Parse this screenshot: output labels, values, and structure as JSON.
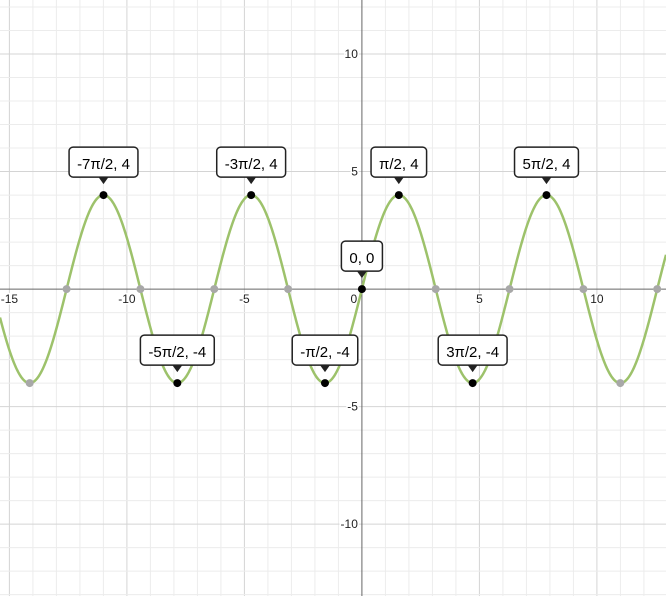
{
  "chart_data": {
    "type": "line",
    "xlim": [
      -15.4,
      12.94
    ],
    "ylim": [
      -13.06,
      12.3
    ],
    "grid": true,
    "grid_minor_step": 1,
    "grid_major_step": 5,
    "x_ticks": [
      -15,
      -10,
      -5,
      0,
      5,
      10
    ],
    "x_tick_labels": [
      "-15",
      "-10",
      "-5",
      "0",
      "5",
      "10"
    ],
    "y_ticks": [
      -10,
      -5,
      5,
      10
    ],
    "y_tick_labels": [
      "-10",
      "-5",
      "5",
      "10"
    ],
    "series": [
      {
        "amplitude": 4,
        "function": "sin",
        "color": "#9dc26b"
      }
    ],
    "zero_points": [
      -12.566,
      -9.425,
      -6.283,
      -3.1416,
      3.1416,
      6.283,
      9.425,
      12.566
    ],
    "extra_points": [
      [
        -14.137,
        -4
      ],
      [
        10.996,
        -4
      ]
    ],
    "labeled_points": [
      {
        "x": -10.9956,
        "y": 4,
        "label": "-7π/2, 4"
      },
      {
        "x": -7.854,
        "y": -4,
        "label": "-5π/2, -4"
      },
      {
        "x": -4.7124,
        "y": 4,
        "label": "-3π/2, 4"
      },
      {
        "x": -1.5708,
        "y": -4,
        "label": "-π/2, -4"
      },
      {
        "x": 0,
        "y": 0,
        "label": "0, 0"
      },
      {
        "x": 1.5708,
        "y": 4,
        "label": "π/2, 4"
      },
      {
        "x": 4.7124,
        "y": -4,
        "label": "3π/2, -4"
      },
      {
        "x": 7.854,
        "y": 4,
        "label": "5π/2, 4"
      }
    ],
    "colors": {
      "curve": "#9dc26b",
      "point": "#000000",
      "zero_point": "#a8a8a8",
      "axis": "#666666"
    }
  }
}
